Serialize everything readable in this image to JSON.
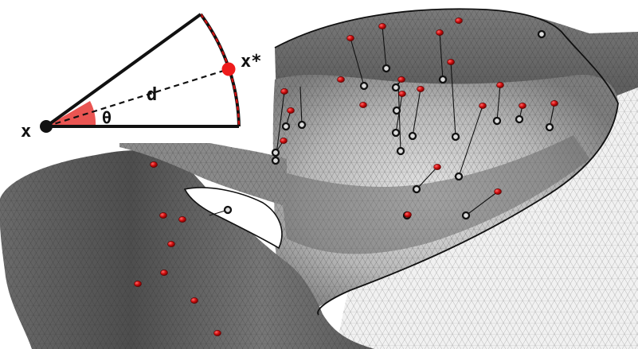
{
  "inset": {
    "label_x": "x",
    "label_xstar": "x*",
    "label_d": "d",
    "label_theta": "θ"
  },
  "colors": {
    "surface_dark": "#5c5c5c",
    "surface_mid": "#8a8a8a",
    "surface_light": "#d4d4d4",
    "surface_white": "#f3f3f3",
    "marker_red": "#d10f0f",
    "marker_black": "#111111",
    "sector_fill": "#e8423f"
  }
}
